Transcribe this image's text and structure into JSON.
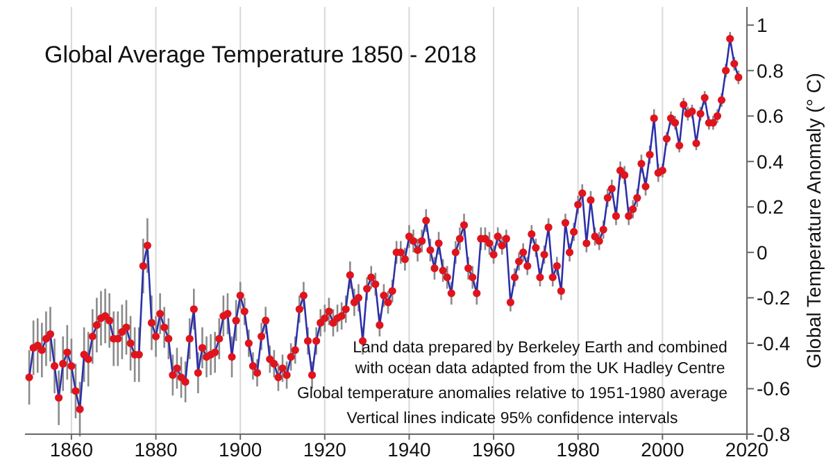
{
  "chart_data": {
    "type": "line",
    "title": "Global Average Temperature 1850 - 2018",
    "ylabel": "Global Temperature Anomaly (° C)",
    "annotations": [
      "Land data prepared by Berkeley Earth and combined\nwith ocean data adapted from the UK Hadley Centre",
      "Global temperature anomalies relative to 1951-1980 average",
      "Vertical lines indicate 95% confidence intervals"
    ],
    "x": [
      1850,
      1851,
      1852,
      1853,
      1854,
      1855,
      1856,
      1857,
      1858,
      1859,
      1860,
      1861,
      1862,
      1863,
      1864,
      1865,
      1866,
      1867,
      1868,
      1869,
      1870,
      1871,
      1872,
      1873,
      1874,
      1875,
      1876,
      1877,
      1878,
      1879,
      1880,
      1881,
      1882,
      1883,
      1884,
      1885,
      1886,
      1887,
      1888,
      1889,
      1890,
      1891,
      1892,
      1893,
      1894,
      1895,
      1896,
      1897,
      1898,
      1899,
      1900,
      1901,
      1902,
      1903,
      1904,
      1905,
      1906,
      1907,
      1908,
      1909,
      1910,
      1911,
      1912,
      1913,
      1914,
      1915,
      1916,
      1917,
      1918,
      1919,
      1920,
      1921,
      1922,
      1923,
      1924,
      1925,
      1926,
      1927,
      1928,
      1929,
      1930,
      1931,
      1932,
      1933,
      1934,
      1935,
      1936,
      1937,
      1938,
      1939,
      1940,
      1941,
      1942,
      1943,
      1944,
      1945,
      1946,
      1947,
      1948,
      1949,
      1950,
      1951,
      1952,
      1953,
      1954,
      1955,
      1956,
      1957,
      1958,
      1959,
      1960,
      1961,
      1962,
      1963,
      1964,
      1965,
      1966,
      1967,
      1968,
      1969,
      1970,
      1971,
      1972,
      1973,
      1974,
      1975,
      1976,
      1977,
      1978,
      1979,
      1980,
      1981,
      1982,
      1983,
      1984,
      1985,
      1986,
      1987,
      1988,
      1989,
      1990,
      1991,
      1992,
      1993,
      1994,
      1995,
      1996,
      1997,
      1998,
      1999,
      2000,
      2001,
      2002,
      2003,
      2004,
      2005,
      2006,
      2007,
      2008,
      2009,
      2010,
      2011,
      2012,
      2013,
      2014,
      2015,
      2016,
      2017,
      2018
    ],
    "series": [
      {
        "color": "#2b2fa8",
        "values": [
          -0.55,
          -0.42,
          -0.41,
          -0.43,
          -0.38,
          -0.36,
          -0.5,
          -0.64,
          -0.49,
          -0.44,
          -0.5,
          -0.61,
          -0.69,
          -0.45,
          -0.47,
          -0.37,
          -0.32,
          -0.29,
          -0.28,
          -0.3,
          -0.38,
          -0.38,
          -0.35,
          -0.33,
          -0.4,
          -0.45,
          -0.45,
          -0.06,
          0.03,
          -0.31,
          -0.37,
          -0.27,
          -0.33,
          -0.38,
          -0.54,
          -0.51,
          -0.55,
          -0.57,
          -0.38,
          -0.25,
          -0.53,
          -0.42,
          -0.46,
          -0.45,
          -0.44,
          -0.38,
          -0.28,
          -0.27,
          -0.46,
          -0.3,
          -0.19,
          -0.26,
          -0.4,
          -0.5,
          -0.53,
          -0.37,
          -0.3,
          -0.47,
          -0.49,
          -0.55,
          -0.51,
          -0.54,
          -0.46,
          -0.43,
          -0.25,
          -0.19,
          -0.39,
          -0.54,
          -0.39,
          -0.31,
          -0.29,
          -0.26,
          -0.31,
          -0.29,
          -0.28,
          -0.25,
          -0.1,
          -0.22,
          -0.2,
          -0.39,
          -0.16,
          -0.11,
          -0.14,
          -0.32,
          -0.19,
          -0.22,
          -0.17,
          0.0,
          0.0,
          -0.03,
          0.07,
          0.05,
          0.01,
          0.05,
          0.14,
          0.01,
          -0.07,
          0.04,
          -0.08,
          -0.11,
          -0.18,
          0.0,
          0.06,
          0.12,
          -0.07,
          -0.11,
          -0.18,
          0.06,
          0.06,
          0.04,
          -0.01,
          0.07,
          0.03,
          0.06,
          -0.22,
          -0.11,
          -0.04,
          0.0,
          -0.06,
          0.08,
          0.02,
          -0.11,
          -0.01,
          0.11,
          -0.11,
          -0.06,
          -0.17,
          0.13,
          0.0,
          0.09,
          0.21,
          0.26,
          0.04,
          0.23,
          0.07,
          0.05,
          0.1,
          0.24,
          0.28,
          0.16,
          0.36,
          0.34,
          0.16,
          0.19,
          0.24,
          0.39,
          0.29,
          0.43,
          0.59,
          0.35,
          0.36,
          0.5,
          0.59,
          0.57,
          0.47,
          0.65,
          0.61,
          0.62,
          0.48,
          0.61,
          0.68,
          0.57,
          0.57,
          0.6,
          0.67,
          0.8,
          0.94,
          0.83,
          0.77
        ],
        "errors": [
          0.12,
          0.12,
          0.12,
          0.12,
          0.12,
          0.12,
          0.12,
          0.12,
          0.12,
          0.12,
          0.12,
          0.12,
          0.12,
          0.12,
          0.12,
          0.12,
          0.12,
          0.12,
          0.12,
          0.12,
          0.12,
          0.12,
          0.12,
          0.12,
          0.12,
          0.12,
          0.12,
          0.12,
          0.12,
          0.12,
          0.09,
          0.09,
          0.09,
          0.09,
          0.09,
          0.09,
          0.09,
          0.09,
          0.09,
          0.09,
          0.09,
          0.09,
          0.09,
          0.09,
          0.09,
          0.09,
          0.09,
          0.09,
          0.09,
          0.09,
          0.06,
          0.06,
          0.06,
          0.06,
          0.06,
          0.06,
          0.06,
          0.06,
          0.06,
          0.06,
          0.06,
          0.06,
          0.06,
          0.06,
          0.06,
          0.06,
          0.06,
          0.06,
          0.06,
          0.06,
          0.06,
          0.06,
          0.06,
          0.06,
          0.06,
          0.06,
          0.06,
          0.06,
          0.06,
          0.06,
          0.05,
          0.05,
          0.05,
          0.05,
          0.05,
          0.05,
          0.05,
          0.05,
          0.05,
          0.05,
          0.05,
          0.05,
          0.05,
          0.05,
          0.05,
          0.05,
          0.05,
          0.05,
          0.05,
          0.05,
          0.05,
          0.05,
          0.05,
          0.05,
          0.05,
          0.05,
          0.05,
          0.05,
          0.05,
          0.05,
          0.04,
          0.04,
          0.04,
          0.04,
          0.04,
          0.04,
          0.04,
          0.04,
          0.04,
          0.04,
          0.04,
          0.04,
          0.04,
          0.04,
          0.04,
          0.04,
          0.04,
          0.04,
          0.04,
          0.04,
          0.04,
          0.04,
          0.04,
          0.04,
          0.04,
          0.04,
          0.04,
          0.04,
          0.04,
          0.04,
          0.04,
          0.04,
          0.04,
          0.04,
          0.04,
          0.04,
          0.04,
          0.04,
          0.04,
          0.04,
          0.03,
          0.03,
          0.03,
          0.03,
          0.03,
          0.03,
          0.03,
          0.03,
          0.03,
          0.03,
          0.03,
          0.03,
          0.03,
          0.03,
          0.03,
          0.03,
          0.03,
          0.03,
          0.03
        ]
      }
    ],
    "xlim": [
      1849,
      2020
    ],
    "xticks": [
      1860,
      1880,
      1900,
      1920,
      1940,
      1960,
      1980,
      2000,
      2020
    ],
    "ylim": [
      -0.8,
      1.08
    ],
    "yticks": [
      -0.8,
      -0.6,
      -0.4,
      -0.2,
      0,
      0.2,
      0.4,
      0.6,
      0.8,
      1
    ],
    "grid": true,
    "marker": "circle",
    "line_style": "solid"
  }
}
